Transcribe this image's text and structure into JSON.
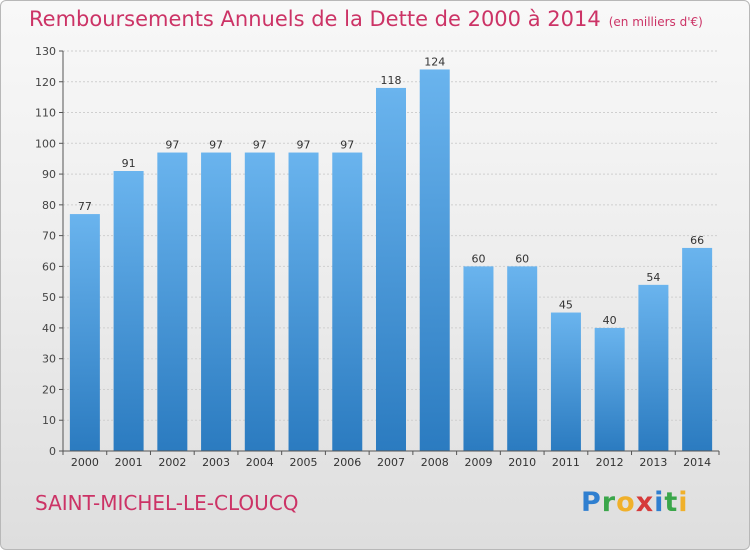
{
  "header": {
    "title": "Remboursements Annuels de la Dette de 2000 à 2014",
    "unit": "(en milliers d'€)"
  },
  "footer": {
    "commune": "SAINT-MICHEL-LE-CLOUCQ",
    "logo": "Proxiti"
  },
  "colors": {
    "accent": "#cc3366",
    "bar_light": "#6ab4ee",
    "bar_dark": "#2b7bc0",
    "logo_letters": [
      "#2f7fd0",
      "#3aa64a",
      "#f0b02a",
      "#d63a3a",
      "#2f7fd0",
      "#3aa64a",
      "#f0b02a"
    ]
  },
  "chart_data": {
    "type": "bar",
    "title": "Remboursements Annuels de la Dette de 2000 à 2014",
    "subtitle": "(en milliers d'€)",
    "categories": [
      "2000",
      "2001",
      "2002",
      "2003",
      "2004",
      "2005",
      "2006",
      "2007",
      "2008",
      "2009",
      "2010",
      "2011",
      "2012",
      "2013",
      "2014"
    ],
    "values": [
      77,
      91,
      97,
      97,
      97,
      97,
      97,
      118,
      124,
      60,
      60,
      45,
      40,
      54,
      66
    ],
    "ylim": [
      0,
      130
    ],
    "yticks": [
      0,
      10,
      20,
      30,
      40,
      50,
      60,
      70,
      80,
      90,
      100,
      110,
      120,
      130
    ],
    "grid": true,
    "legend": "none"
  }
}
